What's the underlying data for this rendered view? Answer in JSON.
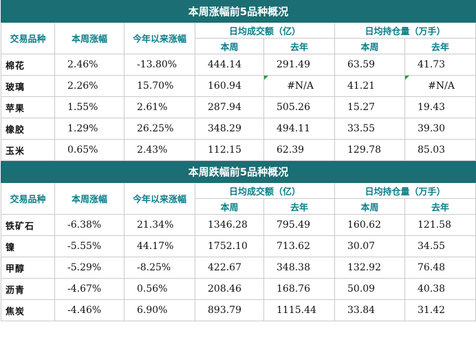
{
  "up": {
    "title": "本周涨幅前5品种概况",
    "headers": {
      "variety": "交易品种",
      "week_change": "本周涨幅",
      "ytd_change": "今年以来涨幅",
      "turnover": "日均成交额（亿）",
      "open_interest": "日均持仓量（万手）",
      "this_week": "本周",
      "last_year": "去年"
    },
    "rows": [
      {
        "name": "棉花",
        "week": "2.46%",
        "ytd": "-13.80%",
        "to_week": "444.14",
        "to_last": "291.49",
        "oi_week": "63.59",
        "oi_last": "41.73"
      },
      {
        "name": "玻璃",
        "week": "2.26%",
        "ytd": "15.70%",
        "to_week": "160.94",
        "to_last": "#N/A",
        "oi_week": "41.21",
        "oi_last": "#N/A"
      },
      {
        "name": "苹果",
        "week": "1.55%",
        "ytd": "2.61%",
        "to_week": "287.94",
        "to_last": "505.26",
        "oi_week": "15.27",
        "oi_last": "19.43"
      },
      {
        "name": "橡胶",
        "week": "1.29%",
        "ytd": "26.25%",
        "to_week": "348.29",
        "to_last": "494.11",
        "oi_week": "33.55",
        "oi_last": "39.30"
      },
      {
        "name": "玉米",
        "week": "0.65%",
        "ytd": "2.43%",
        "to_week": "112.15",
        "to_last": "62.39",
        "oi_week": "129.78",
        "oi_last": "85.03"
      }
    ]
  },
  "down": {
    "title": "本周跌幅前5品种概况",
    "headers": {
      "variety": "交易品种",
      "week_change": "本周涨幅",
      "ytd_change": "今年以来涨幅",
      "turnover": "日均成交额（亿）",
      "open_interest": "日均持仓量（万手）",
      "this_week": "本周",
      "last_year": "去年"
    },
    "rows": [
      {
        "name": "铁矿石",
        "week": "-6.38%",
        "ytd": "21.34%",
        "to_week": "1346.28",
        "to_last": "795.49",
        "oi_week": "160.62",
        "oi_last": "121.58"
      },
      {
        "name": "镍",
        "week": "-5.55%",
        "ytd": "44.17%",
        "to_week": "1752.10",
        "to_last": "713.62",
        "oi_week": "30.07",
        "oi_last": "34.55"
      },
      {
        "name": "甲醇",
        "week": "-5.29%",
        "ytd": "-8.25%",
        "to_week": "422.67",
        "to_last": "348.38",
        "oi_week": "132.92",
        "oi_last": "76.48"
      },
      {
        "name": "沥青",
        "week": "-4.67%",
        "ytd": "0.56%",
        "to_week": "208.46",
        "to_last": "168.76",
        "oi_week": "50.09",
        "oi_last": "40.38"
      },
      {
        "name": "焦炭",
        "week": "-4.46%",
        "ytd": "6.90%",
        "to_week": "893.79",
        "to_last": "1115.44",
        "oi_week": "33.84",
        "oi_last": "31.42"
      }
    ]
  },
  "colors": {
    "title_bg": "#1b6e73",
    "header_text": "#0a7e8a",
    "alt_row_bg": "#eaf1fa",
    "error_marker": "#2a9a3a"
  }
}
